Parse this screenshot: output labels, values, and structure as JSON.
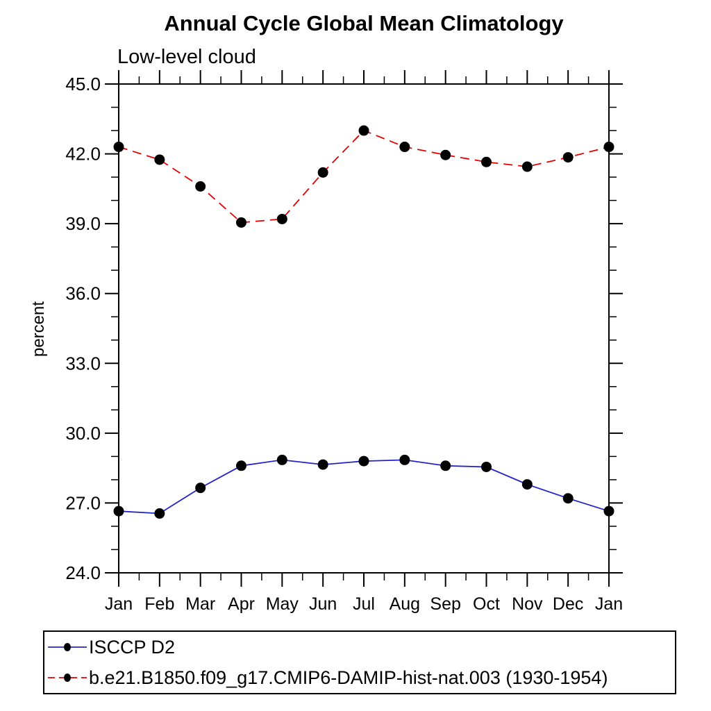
{
  "page": {
    "background": "#ffffff"
  },
  "chart_data": {
    "type": "line",
    "title": "Annual Cycle Global Mean Climatology",
    "subtitle": "Low-level cloud",
    "ylabel": "percent",
    "xlabel": "",
    "categories": [
      "Jan",
      "Feb",
      "Mar",
      "Apr",
      "May",
      "Jun",
      "Jul",
      "Aug",
      "Sep",
      "Oct",
      "Nov",
      "Dec",
      "Jan"
    ],
    "ylim": [
      24.0,
      45.0
    ],
    "ytick_major_interval": 3.0,
    "ytick_minor_interval": 1.0,
    "ytick_labels": [
      "24.0",
      "27.0",
      "30.0",
      "33.0",
      "36.0",
      "39.0",
      "42.0",
      "45.0"
    ],
    "grid": false,
    "legend_position": "bottom-left-box",
    "frame_color": "#000000",
    "marker": {
      "shape": "circle",
      "color": "#000000",
      "radius": 7.5
    },
    "series": [
      {
        "name": "ISCCP D2",
        "color": "#2222cc",
        "line_style": "solid",
        "values": [
          26.65,
          26.55,
          27.65,
          28.6,
          28.85,
          28.65,
          28.8,
          28.85,
          28.6,
          28.55,
          27.8,
          27.2,
          26.65
        ]
      },
      {
        "name": "b.e21.B1850.f09_g17.CMIP6-DAMIP-hist-nat.003 (1930-1954)",
        "color": "#e60000",
        "line_style": "dashed",
        "values": [
          42.3,
          41.75,
          40.6,
          39.05,
          39.2,
          41.2,
          43.0,
          42.3,
          41.95,
          41.65,
          41.45,
          41.85,
          42.3
        ]
      }
    ]
  }
}
